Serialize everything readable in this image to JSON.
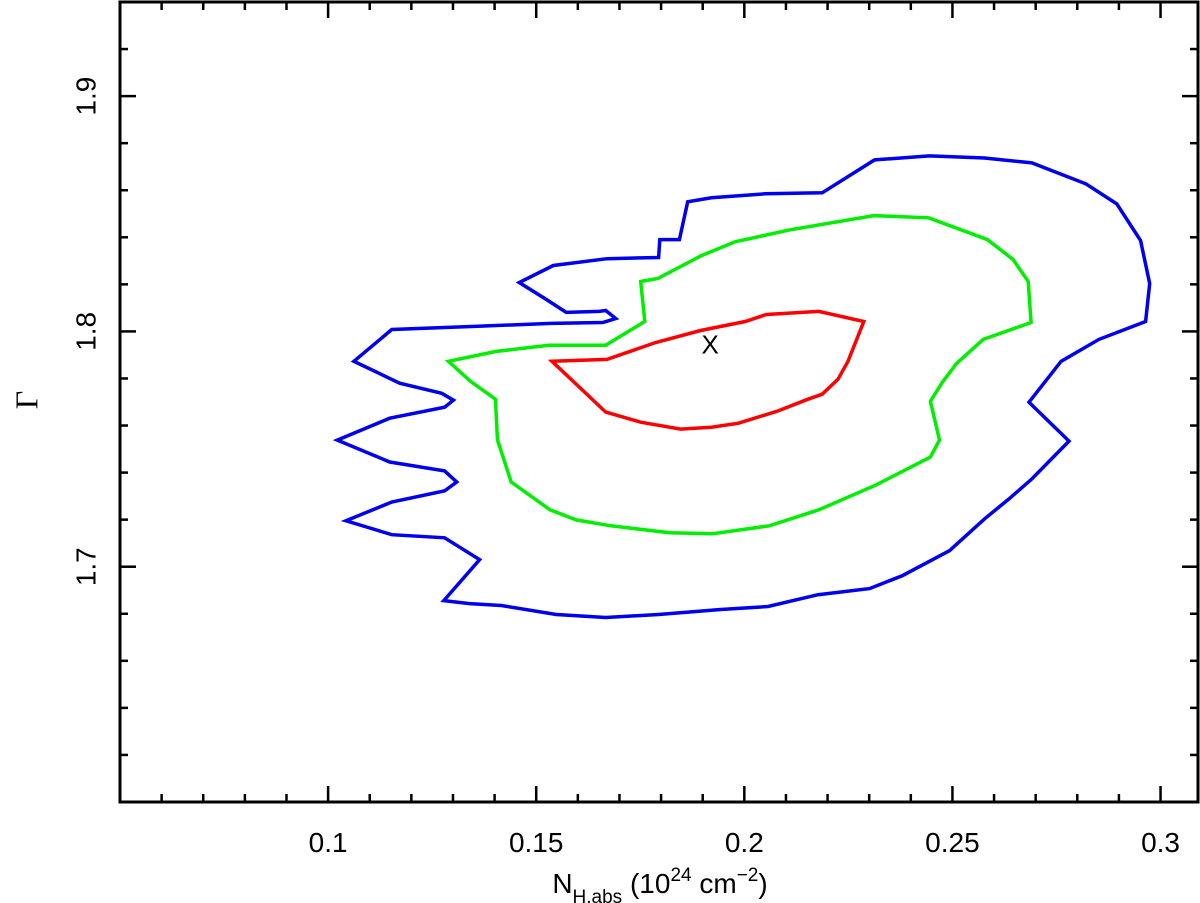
{
  "chart_data": {
    "type": "contour",
    "xlabel": [
      "N",
      "H,abs",
      " (10",
      "24",
      " cm",
      "−2",
      ")"
    ],
    "ylabel": "Γ",
    "xlim": [
      0.05,
      0.309
    ],
    "ylim": [
      1.6,
      1.94
    ],
    "xticks": [
      0.1,
      0.15,
      0.2,
      0.25,
      0.3
    ],
    "yticks": [
      1.7,
      1.8,
      1.9
    ],
    "xminorticks": [
      0.06,
      0.07,
      0.08,
      0.09,
      0.11,
      0.12,
      0.13,
      0.14,
      0.16,
      0.17,
      0.18,
      0.19,
      0.21,
      0.22,
      0.23,
      0.24,
      0.26,
      0.27,
      0.28,
      0.29
    ],
    "yminorticks": [
      1.62,
      1.64,
      1.66,
      1.68,
      1.72,
      1.74,
      1.76,
      1.78,
      1.82,
      1.84,
      1.86,
      1.88,
      1.92
    ],
    "annotation": {
      "text": "X",
      "x": 0.1918,
      "y": 1.7936
    },
    "series": [
      {
        "color": "#ff0000",
        "x": [
          0.1538,
          0.167,
          0.1787,
          0.1895,
          0.2002,
          0.2053,
          0.2179,
          0.2287,
          0.2249,
          0.2225,
          0.2187,
          0.2153,
          0.2079,
          0.1986,
          0.1921,
          0.1847,
          0.1751,
          0.1667
        ],
        "values": [
          1.7873,
          1.7881,
          1.7953,
          1.8004,
          1.8042,
          1.8072,
          1.8085,
          1.8042,
          1.7873,
          1.7797,
          1.7733,
          1.7712,
          1.7661,
          1.761,
          1.7593,
          1.7585,
          1.7614,
          1.7657
        ]
      },
      {
        "color": "#00ee00",
        "x": [
          0.1289,
          0.1404,
          0.1531,
          0.1667,
          0.1761,
          0.1751,
          0.1792,
          0.1897,
          0.1978,
          0.211,
          0.2311,
          0.2443,
          0.2584,
          0.2646,
          0.2682,
          0.2689,
          0.2574,
          0.251,
          0.2476,
          0.2447,
          0.2469,
          0.2447,
          0.2316,
          0.2179,
          0.206,
          0.1923,
          0.1821,
          0.1679,
          0.1596,
          0.1533,
          0.144,
          0.1407,
          0.1402,
          0.1342
        ],
        "values": [
          1.7873,
          1.7915,
          1.7941,
          1.7941,
          1.8042,
          1.8212,
          1.8225,
          1.8322,
          1.8381,
          1.8432,
          1.8492,
          1.8483,
          1.839,
          1.8305,
          1.8212,
          1.8038,
          1.7966,
          1.7864,
          1.7784,
          1.7703,
          1.7538,
          1.7466,
          1.7347,
          1.7242,
          1.7174,
          1.714,
          1.7144,
          1.7174,
          1.7199,
          1.7242,
          1.736,
          1.7538,
          1.7712,
          1.7788
        ]
      },
      {
        "color": "#0000ee",
        "x": [
          0.1278,
          0.1364,
          0.128,
          0.1153,
          0.1043,
          0.1153,
          0.128,
          0.1309,
          0.128,
          0.1148,
          0.1022,
          0.1148,
          0.128,
          0.1301,
          0.1273,
          0.1172,
          0.1062,
          0.1153,
          0.1344,
          0.1536,
          0.166,
          0.1691,
          0.1667,
          0.1651,
          0.1572,
          0.1524,
          0.1459,
          0.1541,
          0.167,
          0.1794,
          0.1797,
          0.1844,
          0.1864,
          0.1921,
          0.205,
          0.2187,
          0.2313,
          0.2445,
          0.2577,
          0.2691,
          0.2821,
          0.2895,
          0.2952,
          0.2974,
          0.2964,
          0.2852,
          0.2761,
          0.2684,
          0.278,
          0.2691,
          0.2636,
          0.2577,
          0.2493,
          0.238,
          0.2301,
          0.2177,
          0.2057,
          0.1943,
          0.1794,
          0.1667,
          0.1548,
          0.1416,
          0.134
        ],
        "values": [
          1.6856,
          1.703,
          1.7123,
          1.7136,
          1.7195,
          1.7275,
          1.7322,
          1.736,
          1.7407,
          1.7445,
          1.7538,
          1.7631,
          1.7678,
          1.7708,
          1.7737,
          1.778,
          1.7873,
          1.8008,
          1.8021,
          1.8034,
          1.8038,
          1.8055,
          1.8089,
          1.8085,
          1.8081,
          1.8136,
          1.8208,
          1.828,
          1.8309,
          1.8314,
          1.839,
          1.839,
          1.8551,
          1.8568,
          1.8585,
          1.8589,
          1.8729,
          1.8746,
          1.8737,
          1.8716,
          1.8627,
          1.8542,
          1.8386,
          1.8203,
          1.8042,
          1.7966,
          1.7873,
          1.7699,
          1.7534,
          1.7373,
          1.7288,
          1.7203,
          1.7068,
          1.6962,
          1.6907,
          1.6881,
          1.6831,
          1.6818,
          1.6797,
          1.6784,
          1.6797,
          1.6835,
          1.6843
        ]
      }
    ]
  }
}
